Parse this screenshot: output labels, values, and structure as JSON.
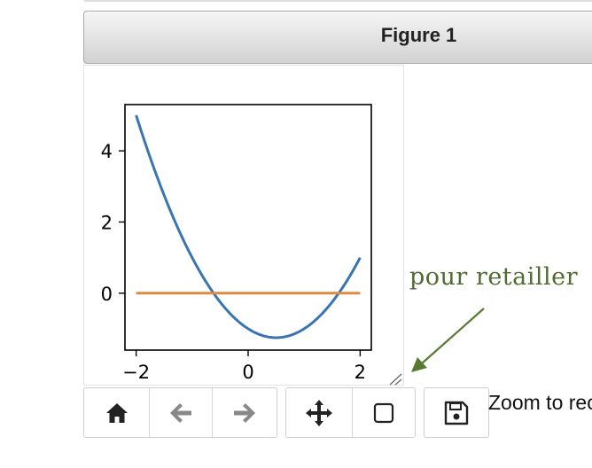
{
  "window": {
    "title": "Figure 1"
  },
  "annotation": "pour retailler",
  "status_text": "Zoom to rect",
  "toolbar": {
    "home_icon": "home-icon",
    "back_icon": "arrow-left-icon",
    "forward_icon": "arrow-right-icon",
    "pan_icon": "move-icon",
    "zoom_icon": "square-icon",
    "save_icon": "floppy-disk-icon"
  },
  "colors": {
    "curve": "#3a75b0",
    "hline": "#df8a43",
    "annotation": "#4f6b2f",
    "arrow": "#567a30"
  },
  "chart_data": {
    "type": "line",
    "title": "",
    "xlabel": "",
    "ylabel": "",
    "xlim": [
      -2.2,
      2.2
    ],
    "ylim": [
      -1.6,
      5.3
    ],
    "xticks": [
      "−2",
      "0",
      "2"
    ],
    "yticks": [
      "0",
      "2",
      "4"
    ],
    "series": [
      {
        "x": [
          -2,
          -1.5,
          -1,
          -0.5,
          0,
          0.5,
          1,
          1.5,
          2
        ],
        "y": [
          5,
          2.75,
          1,
          -0.25,
          -1,
          -1.25,
          -1,
          -0.25,
          1
        ]
      },
      {
        "x": [
          -2,
          2
        ],
        "y": [
          0,
          0
        ]
      }
    ],
    "grid": false,
    "legend": "none"
  }
}
